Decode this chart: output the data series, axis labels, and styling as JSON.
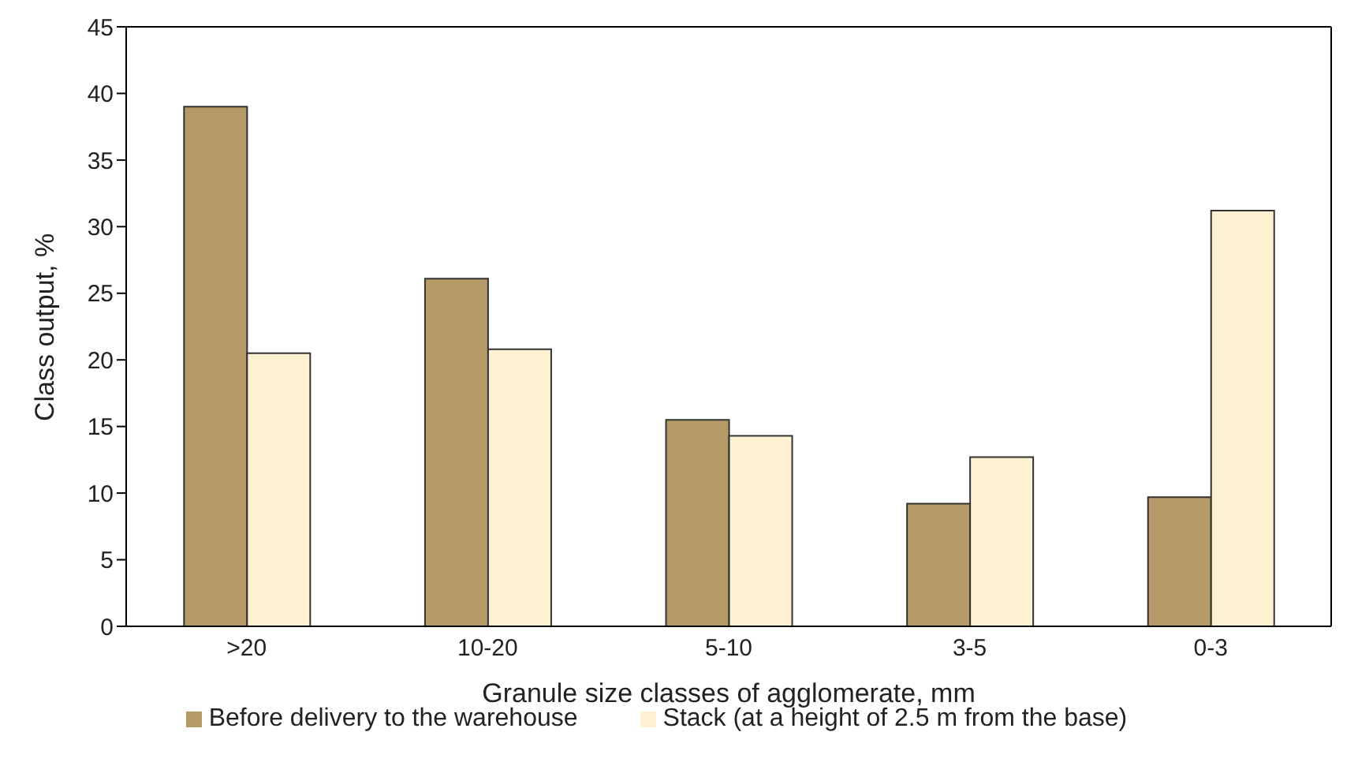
{
  "chart_data": {
    "type": "bar",
    "xlabel": "Granule size classes of agglomerate, mm",
    "ylabel": "Class output, %",
    "categories": [
      ">20",
      "10-20",
      "5-10",
      "3-5",
      "0-3"
    ],
    "series": [
      {
        "name": "Before delivery to the warehouse",
        "color": "#b39a66",
        "values": [
          39.0,
          26.1,
          15.5,
          9.2,
          9.7
        ]
      },
      {
        "name": "Stack (at a height of 2.5 m from the base)",
        "color": "#fdf1d2",
        "values": [
          20.5,
          20.8,
          14.3,
          12.7,
          31.2
        ]
      }
    ],
    "ylim": [
      0,
      45
    ],
    "yticks": [
      0,
      5,
      10,
      15,
      20,
      25,
      30,
      35,
      40,
      45
    ],
    "grid": false,
    "legend": "bottom"
  }
}
